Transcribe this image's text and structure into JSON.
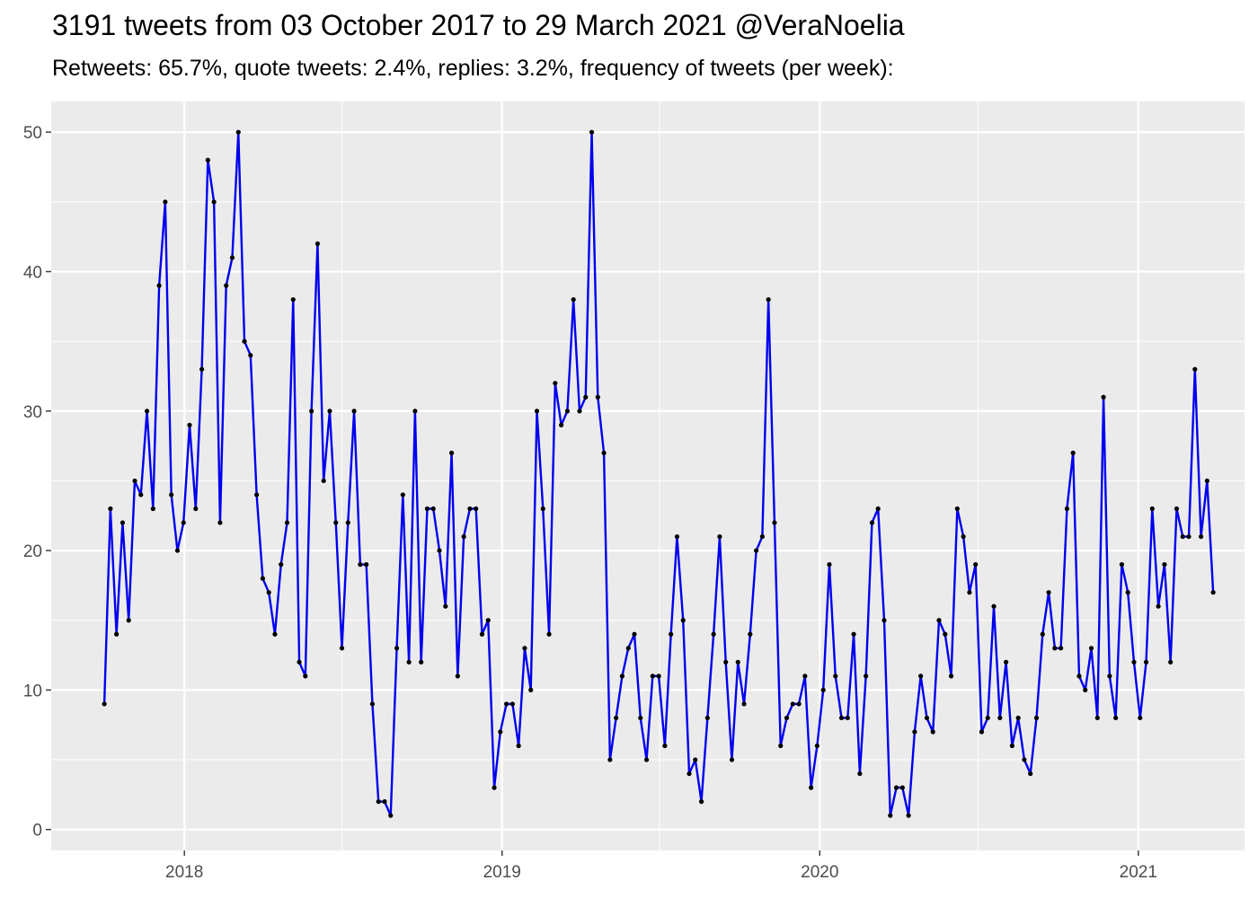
{
  "chart_data": {
    "type": "line",
    "title": "3191 tweets from 03 October 2017 to 29 March 2021 @VeraNoelia",
    "subtitle": "Retweets: 65.7%, quote tweets: 2.4%, replies: 3.2%, frequency of tweets (per week):",
    "xlabel": "",
    "ylabel": "",
    "x_tick_labels": [
      "2018",
      "2019",
      "2020",
      "2021"
    ],
    "y_ticks": [
      0,
      10,
      20,
      30,
      40,
      50
    ],
    "ylim": [
      -1.5,
      52.2
    ],
    "xlim": [
      "2017-08-01",
      "2021-05-03"
    ],
    "grid": true,
    "colors": {
      "line": "#0000ee",
      "point": "#000000",
      "panel": "#ebebeb",
      "grid": "#ffffff",
      "tick_text": "#4d4d4d"
    },
    "series": [
      {
        "start": "2017-10-01",
        "interval_days": 7,
        "values": [
          9,
          23,
          14,
          22,
          15,
          25,
          24,
          30,
          23,
          39,
          45,
          24,
          20,
          22,
          29,
          23,
          33,
          48,
          45,
          22,
          39,
          41,
          50,
          35,
          34,
          24,
          18,
          17,
          14,
          19,
          22,
          38,
          12,
          11,
          30,
          42,
          25,
          30,
          22,
          13,
          22,
          30,
          19,
          19,
          9,
          2,
          2,
          1,
          13,
          24,
          12,
          30,
          12,
          23,
          23,
          20,
          16,
          27,
          11,
          21,
          23,
          23,
          14,
          15,
          3,
          7,
          9,
          9,
          6,
          13,
          10,
          30,
          23,
          14,
          32,
          29,
          30,
          38,
          30,
          31,
          50,
          31,
          27,
          5,
          8,
          11,
          13,
          14,
          8,
          5,
          11,
          11,
          6,
          14,
          21,
          15,
          4,
          5,
          2,
          8,
          14,
          21,
          12,
          5,
          12,
          9,
          14,
          20,
          21,
          38,
          22,
          6,
          8,
          9,
          9,
          11,
          3,
          6,
          10,
          19,
          11,
          8,
          8,
          14,
          4,
          11,
          22,
          23,
          15,
          1,
          3,
          3,
          1,
          7,
          11,
          8,
          7,
          15,
          14,
          11,
          23,
          21,
          17,
          19,
          7,
          8,
          16,
          8,
          12,
          6,
          8,
          5,
          4,
          8,
          14,
          17,
          13,
          13,
          23,
          27,
          11,
          10,
          13,
          8,
          31,
          11,
          8,
          19,
          17,
          12,
          8,
          12,
          23,
          16,
          19,
          12,
          23,
          21,
          21,
          33,
          21,
          25,
          17
        ]
      }
    ]
  }
}
